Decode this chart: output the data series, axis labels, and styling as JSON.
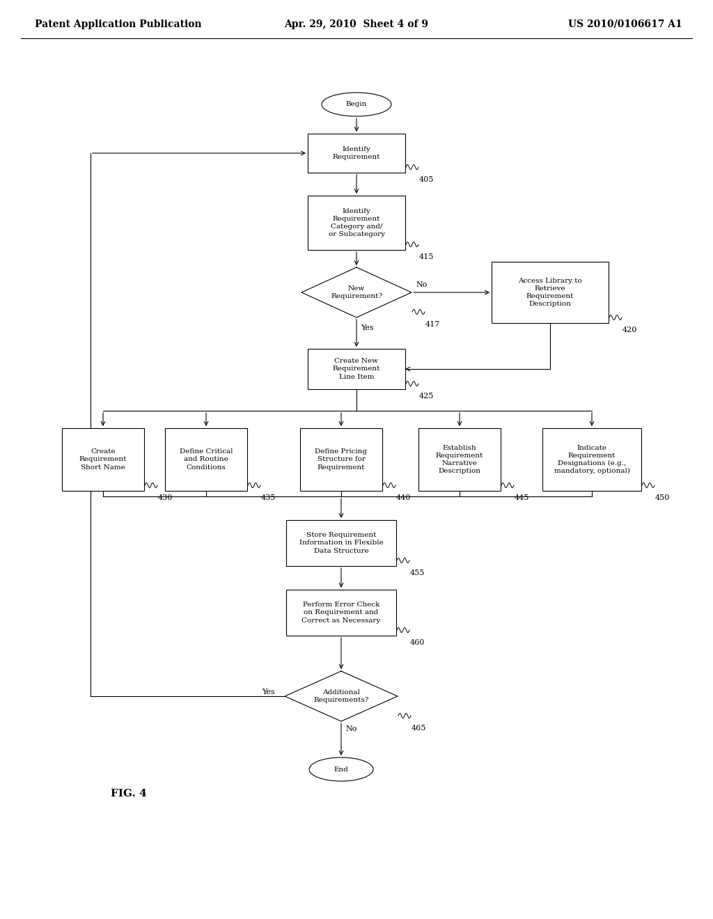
{
  "bg_color": "#ffffff",
  "header_left": "Patent Application Publication",
  "header_mid": "Apr. 29, 2010  Sheet 4 of 9",
  "header_right": "US 2010/0106617 A1",
  "figure_label": "FIG. 4",
  "font_size_node": 7.5,
  "font_size_header": 10.0,
  "font_size_label": 8.0,
  "font_size_fig": 11.0
}
